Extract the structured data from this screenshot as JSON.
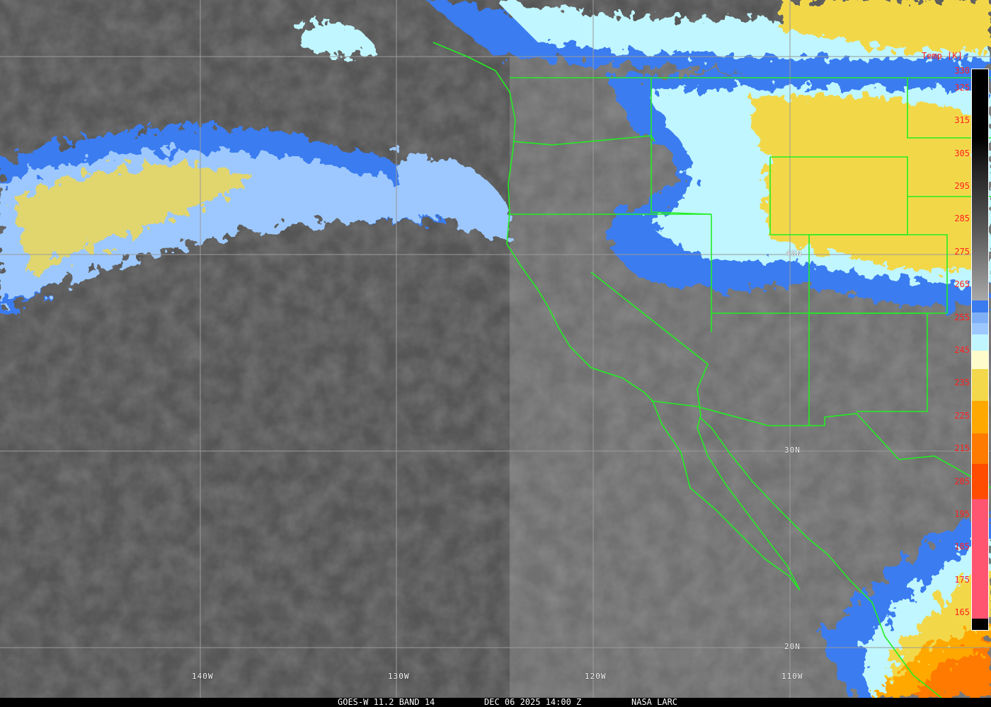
{
  "caption": {
    "satellite": "GOES-W 11.2 BAND 14",
    "datetime": "DEC 06 2025 14:00 Z",
    "source": "NASA LARC"
  },
  "colorbar": {
    "title": "Temp [K]",
    "ticks": [
      "330",
      "325",
      "315",
      "305",
      "295",
      "285",
      "275",
      "265",
      "255",
      "245",
      "235",
      "225",
      "215",
      "205",
      "195",
      "185",
      "175",
      "165"
    ]
  },
  "grid_labels": {
    "lon": [
      "140W",
      "130W",
      "120W",
      "110W"
    ],
    "lat": [
      "40N",
      "30N",
      "20N"
    ]
  },
  "colors": {
    "border": "#22ee22",
    "grid": "#9a9a9a",
    "cloud_blue": "#3a7bf0",
    "cloud_cyan": "#bff6ff",
    "cloud_yellow": "#f2d84a",
    "cold_orange": "#ff7a00"
  }
}
